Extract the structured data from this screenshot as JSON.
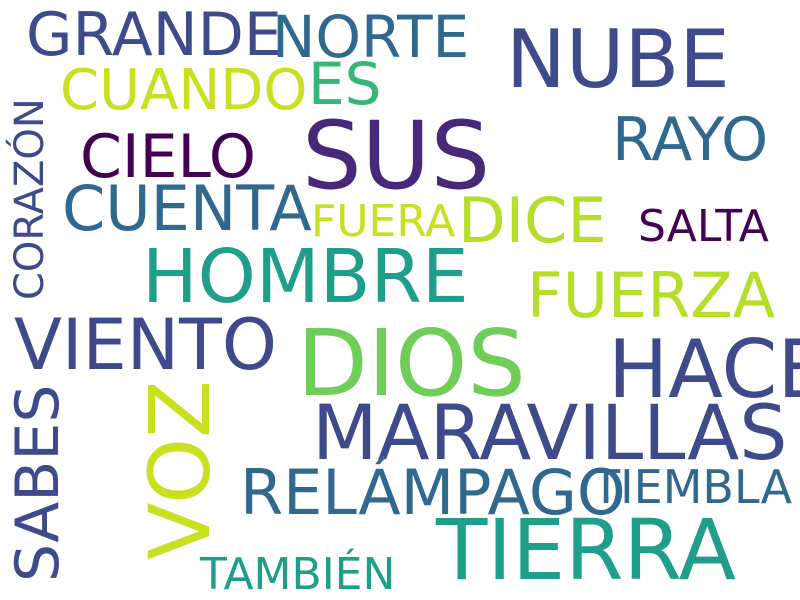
{
  "palette": {
    "dark_purple": "#440154",
    "indigo": "#482878",
    "slate_blue": "#3e4a89",
    "steel_blue": "#31688e",
    "teal": "#26828e",
    "sea_green": "#1f9e89",
    "green": "#35b779",
    "light_green": "#6ece58",
    "yellow_green": "#b5de2b",
    "lime": "#c8e020"
  },
  "words": {
    "grande": "GRANDE",
    "norte": "NORTE",
    "nube": "NUBE",
    "cuando": "CUANDO",
    "es": "ES",
    "corazon": "CORAZÓN",
    "cielo": "CIELO",
    "sus": "SUS",
    "rayo": "RAYO",
    "cuenta": "CUENTA",
    "fuera": "FUERA",
    "dice": "DICE",
    "salta": "SALTA",
    "hombre": "HOMBRE",
    "fuerza": "FUERZA",
    "viento": "VIENTO",
    "dios": "DIOS",
    "hace": "HACE",
    "sabes": "SABES",
    "voz": "VOZ",
    "maravillas": "MARAVILLAS",
    "relampago": "RELÁMPAGO",
    "tiembla": "TIEMBLA",
    "tierra": "TIERRA",
    "tambien": "TAMBIÉN"
  }
}
